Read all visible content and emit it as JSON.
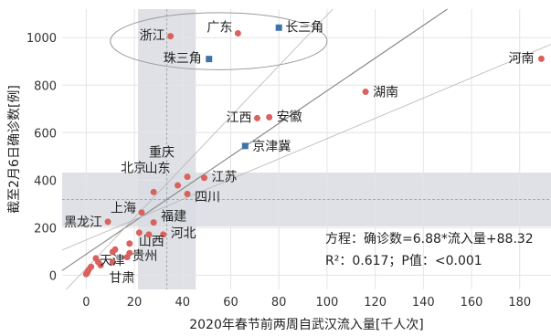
{
  "chart_data": {
    "type": "scatter",
    "title": "",
    "xlabel": "2020年春节前两周自武汉流入量[千人次]",
    "ylabel": "截至2月6日确诊数[例]",
    "xlim": [
      -10,
      193
    ],
    "ylim": [
      -60,
      1120
    ],
    "xticks": [
      "0",
      "20",
      "40",
      "60",
      "80",
      "100",
      "120",
      "140",
      "160",
      "180"
    ],
    "yticks": [
      "0",
      "200",
      "400",
      "600",
      "800",
      "1000"
    ],
    "xtick_values": [
      0,
      20,
      40,
      60,
      80,
      100,
      120,
      140,
      160,
      180
    ],
    "ytick_values": [
      0,
      200,
      400,
      600,
      800,
      1000
    ],
    "grid": true,
    "regression": {
      "slope": 6.88,
      "intercept": 88.32
    },
    "mean_x": 33.5,
    "mean_y": 318,
    "band_x": [
      21.5,
      45.5
    ],
    "band_y": [
      205,
      432
    ],
    "series": [
      {
        "marker": "circle",
        "color": "#d9625f",
        "points": [
          {
            "label": "浙江",
            "x": 35,
            "y": 1006
          },
          {
            "label": "广东",
            "x": 63,
            "y": 1018
          },
          {
            "label": "河南",
            "x": 189,
            "y": 911
          },
          {
            "label": "湖南",
            "x": 116,
            "y": 772
          },
          {
            "label": "江西",
            "x": 71,
            "y": 661
          },
          {
            "label": "安徽",
            "x": 76,
            "y": 665
          },
          {
            "label": "重庆",
            "x": 42,
            "y": 414
          },
          {
            "label": "江苏",
            "x": 49,
            "y": 410
          },
          {
            "label": "山东",
            "x": 38,
            "y": 378
          },
          {
            "label": "北京",
            "x": 28,
            "y": 350
          },
          {
            "label": "四川",
            "x": 42,
            "y": 342
          },
          {
            "label": "上海",
            "x": 23,
            "y": 264
          },
          {
            "label": "黑龙江",
            "x": 9,
            "y": 225
          },
          {
            "label": "福建",
            "x": 28,
            "y": 222
          },
          {
            "label": "河北",
            "x": 32,
            "y": 171
          },
          {
            "label": "天津",
            "x": 26,
            "y": 171
          },
          {
            "label": "山西",
            "x": 18,
            "y": 133
          },
          {
            "label": "贵州",
            "x": 22,
            "y": 179
          },
          {
            "label": "甘肃",
            "x": 11,
            "y": 55
          },
          {
            "label": "",
            "x": 12,
            "y": 108
          },
          {
            "label": "",
            "x": 11,
            "y": 98
          },
          {
            "label": "",
            "x": 18,
            "y": 93
          },
          {
            "label": "",
            "x": 17,
            "y": 76
          },
          {
            "label": "",
            "x": 4,
            "y": 71
          },
          {
            "label": "",
            "x": 5,
            "y": 55
          },
          {
            "label": "",
            "x": 6,
            "y": 42
          },
          {
            "label": "",
            "x": 2,
            "y": 35
          },
          {
            "label": "",
            "x": 1,
            "y": 22
          },
          {
            "label": "",
            "x": 0.5,
            "y": 12
          },
          {
            "label": "",
            "x": 0,
            "y": 5
          }
        ]
      },
      {
        "marker": "square",
        "color": "#3f72a8",
        "points": [
          {
            "label": "长三角",
            "x": 80,
            "y": 1042
          },
          {
            "label": "珠三角",
            "x": 51,
            "y": 910
          },
          {
            "label": "京津冀",
            "x": 66,
            "y": 544
          }
        ]
      }
    ],
    "annotations": [
      "方程：确诊数=6.88*流入量+88.32",
      "R²：0.617；P值：<0.001"
    ]
  }
}
